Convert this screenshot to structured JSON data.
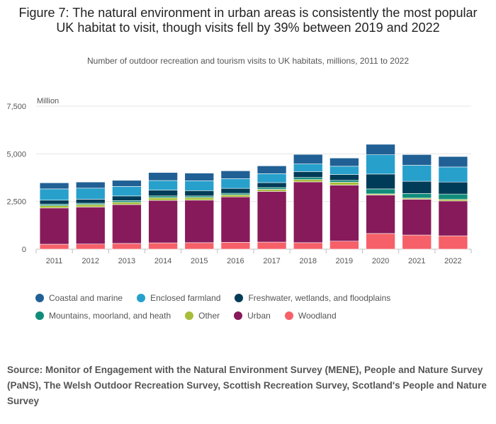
{
  "title": "Figure 7: The natural environment in urban areas is consistently the most popular UK habitat to visit, though visits fell by 39% between 2019 and 2022",
  "subtitle": "Number of outdoor recreation and tourism visits to UK habitats, millions, 2011 to 2022",
  "source": "Source: Monitor of Engagement with the Natural Environment Survey (MENE), People and Nature Survey (PaNS), The Welsh Outdoor Recreation Survey, Scottish Recreation Survey, Scotland's People and Nature Survey",
  "legend": [
    {
      "label": "Coastal and marine",
      "color": "#206095"
    },
    {
      "label": "Enclosed farmland",
      "color": "#27a0cc"
    },
    {
      "label": "Freshwater, wetlands, and floodplains",
      "color": "#003c57"
    },
    {
      "label": "Mountains, moorland, and heath",
      "color": "#118c7b"
    },
    {
      "label": "Other",
      "color": "#a8bd3a"
    },
    {
      "label": "Urban",
      "color": "#871a5b"
    },
    {
      "label": "Woodland",
      "color": "#f66068"
    }
  ],
  "chart_data": {
    "type": "bar",
    "stacked": true,
    "title": "Figure 7: The natural environment in urban areas is consistently the most popular UK habitat to visit, though visits fell by 39% between 2019 and 2022",
    "ylabel": "Million",
    "xlabel": "",
    "ylim": [
      0,
      7500
    ],
    "yticks": [
      0,
      2500,
      5000,
      7500
    ],
    "ytick_labels": [
      "0",
      "2,500",
      "5,000",
      "7,500"
    ],
    "grid": true,
    "categories": [
      "2011",
      "2012",
      "2013",
      "2014",
      "2015",
      "2016",
      "2017",
      "2018",
      "2019",
      "2020",
      "2021",
      "2022"
    ],
    "series": [
      {
        "name": "Woodland",
        "color": "#f66068",
        "values": [
          260,
          270,
          300,
          330,
          340,
          360,
          370,
          340,
          420,
          820,
          740,
          700
        ]
      },
      {
        "name": "Urban",
        "color": "#871a5b",
        "values": [
          1900,
          1940,
          2040,
          2230,
          2230,
          2380,
          2660,
          3190,
          2940,
          2020,
          1880,
          1830
        ]
      },
      {
        "name": "Other",
        "color": "#a8bd3a",
        "values": [
          120,
          130,
          120,
          140,
          140,
          110,
          110,
          120,
          150,
          60,
          60,
          80
        ]
      },
      {
        "name": "Mountains, moorland, and heath",
        "color": "#118c7b",
        "values": [
          80,
          70,
          90,
          90,
          80,
          80,
          90,
          110,
          100,
          260,
          240,
          280
        ]
      },
      {
        "name": "Freshwater, wetlands, and floodplains",
        "color": "#003c57",
        "values": [
          210,
          210,
          240,
          310,
          280,
          260,
          260,
          310,
          310,
          780,
          640,
          630
        ]
      },
      {
        "name": "Enclosed farmland",
        "color": "#27a0cc",
        "values": [
          590,
          580,
          500,
          500,
          520,
          510,
          470,
          400,
          430,
          1010,
          840,
          790
        ]
      },
      {
        "name": "Coastal and marine",
        "color": "#206095",
        "values": [
          320,
          320,
          320,
          420,
          400,
          410,
          410,
          500,
          430,
          550,
          560,
          550
        ]
      }
    ]
  }
}
